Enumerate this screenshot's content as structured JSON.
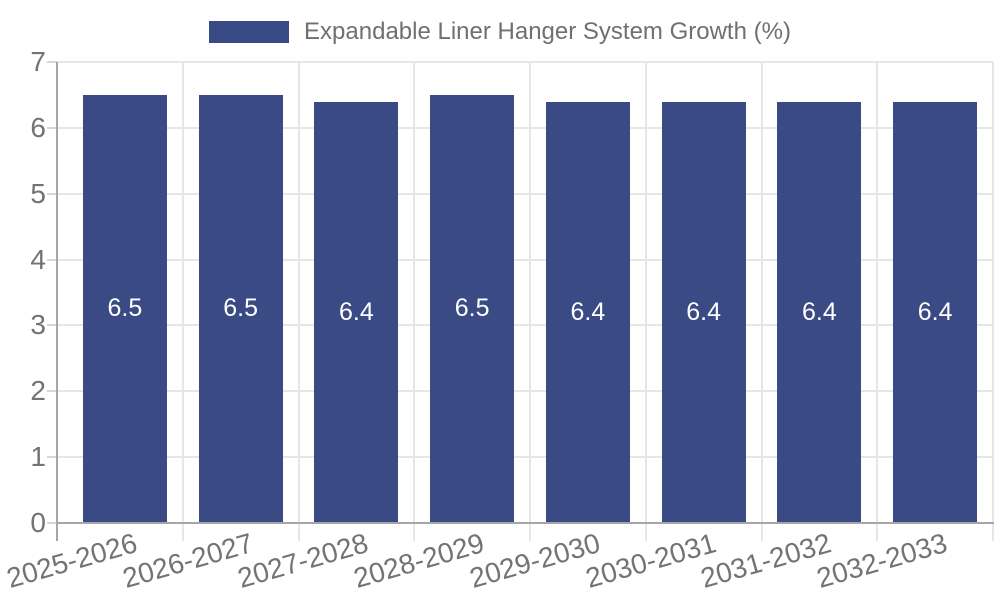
{
  "chart_data": {
    "type": "bar",
    "title": "Expandable Liner Hanger System Growth (%)",
    "categories": [
      "2025-2026",
      "2026-2027",
      "2027-2028",
      "2028-2029",
      "2029-2030",
      "2030-2031",
      "2031-2032",
      "2032-2033"
    ],
    "values": [
      6.5,
      6.5,
      6.4,
      6.5,
      6.4,
      6.4,
      6.4,
      6.4
    ],
    "value_labels": [
      "6.5",
      "6.5",
      "6.4",
      "6.5",
      "6.4",
      "6.4",
      "6.4",
      "6.4"
    ],
    "xlabel": "",
    "ylabel": "",
    "ylim": [
      0,
      7
    ],
    "yticks": [
      0,
      1,
      2,
      3,
      4,
      5,
      6,
      7
    ],
    "grid": true,
    "legend_position": "top-center",
    "colors": {
      "bar": "#3A4A84",
      "bar_value_text": "#FFFFFF",
      "legend_text": "#707070",
      "axis_text": "#737373",
      "gridline": "#E6E6E6",
      "axis_line": "#A6A6A6",
      "tick": "#D8D8D8",
      "background": "#FFFFFF"
    }
  }
}
